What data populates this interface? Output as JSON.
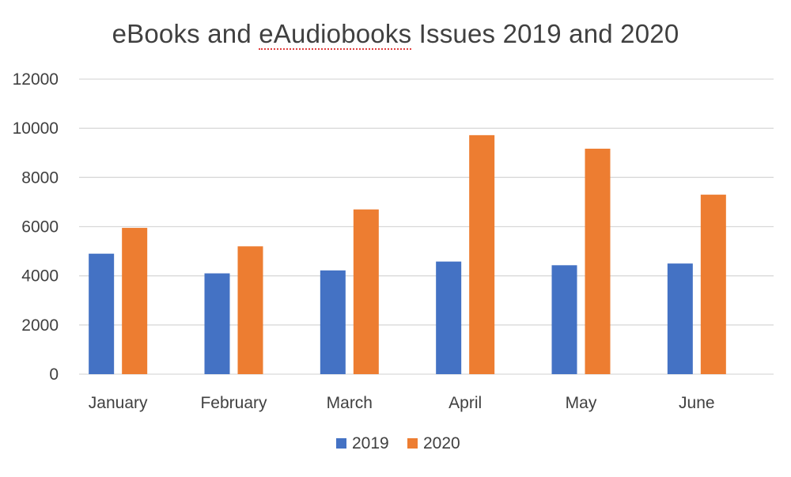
{
  "chart_data": {
    "type": "bar",
    "title_parts": [
      "eBooks and ",
      "eAudiobooks",
      " Issues 2019 and 2020"
    ],
    "categories": [
      "January",
      "February",
      "March",
      "April",
      "May",
      "June"
    ],
    "series": [
      {
        "name": "2019",
        "color": "#4472C4",
        "values": [
          4900,
          4100,
          4220,
          4580,
          4430,
          4500
        ]
      },
      {
        "name": "2020",
        "color": "#ED7D31",
        "values": [
          5950,
          5200,
          6700,
          9720,
          9170,
          7300
        ]
      }
    ],
    "yticks": [
      "0",
      "2000",
      "4000",
      "6000",
      "8000",
      "10000",
      "12000"
    ],
    "ylim": [
      0,
      12000
    ],
    "grid": true,
    "legend_position": "bottom"
  }
}
